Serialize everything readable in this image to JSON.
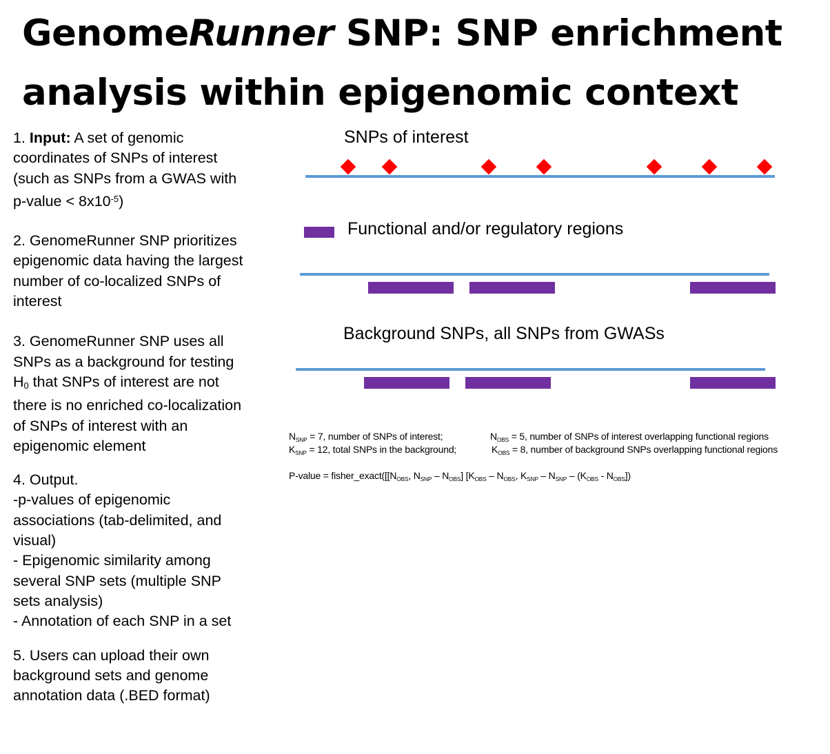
{
  "title": {
    "part1": "Genome",
    "part2": "Runner",
    "part3": " SNP: SNP enrichment analysis within epigenomic context"
  },
  "steps": {
    "s1_num": "1. ",
    "s1_bold": "Input:",
    "s1_text": " A set of genomic coordinates of SNPs of interest (such as SNPs from a GWAS with p-value < 8x10",
    "s1_sup": "-5",
    "s1_end": ")",
    "s2": "2. GenomeRunner SNP prioritizes epigenomic data having the largest number of co-localized SNPs of interest",
    "s3_a": "3. GenomeRunner SNP uses all SNPs as a background for testing H",
    "s3_sub": "0",
    "s3_b": " that SNPs of interest are not there is no enriched co-localization of SNPs of interest with an epigenomic element",
    "s4_l1": "4. Output.",
    "s4_l2": "-p-values of epigenomic associations (tab-delimited, and visual)",
    "s4_l3": "- Epigenomic similarity among several SNP sets (multiple SNP sets analysis)",
    "s4_l4": "- Annotation of each SNP in a set",
    "s5": "5. Users can upload their own background sets and genome annotation data (.BED format)"
  },
  "diagram": {
    "snps_label": "SNPs of interest",
    "regions_label": "Functional and/or regulatory regions",
    "background_label": "Background SNPs, all SNPs from GWASs",
    "colors": {
      "track": "#5b9bd5",
      "snp": "#ff0000",
      "region": "#7030a0"
    }
  },
  "stats": {
    "n_snp": "N",
    "n_snp_sub": "SNP",
    "n_snp_text": " = 7, number of SNPs of interest;",
    "n_obs": "N",
    "n_obs_sub": "OBS",
    "n_obs_text": " = 5, number of SNPs of interest overlapping functional regions",
    "k_snp": "K",
    "k_snp_sub": "SNP",
    "k_snp_text": " = 12, total SNPs in the background;",
    "k_obs": "K",
    "k_obs_sub": "OBS",
    "k_obs_text": " = 8, number of background SNPs overlapping functional regions",
    "formula_prefix": "P-value = fisher_exact([[N",
    "f_sub1": "OBS",
    "f_t1": ", N",
    "f_sub2": "SNP",
    "f_t2": " – N",
    "f_sub3": "OBS",
    "f_t3": "] [K",
    "f_sub4": "OBS",
    "f_t4": " – N",
    "f_sub5": "OBS",
    "f_t5": ", K",
    "f_sub6": "SNP",
    "f_t6": " – N",
    "f_sub7": "SNP",
    "f_t7": " – (K",
    "f_sub8": "OBS",
    "f_t8": " - N",
    "f_sub9": "OBS",
    "f_t9": "])"
  }
}
